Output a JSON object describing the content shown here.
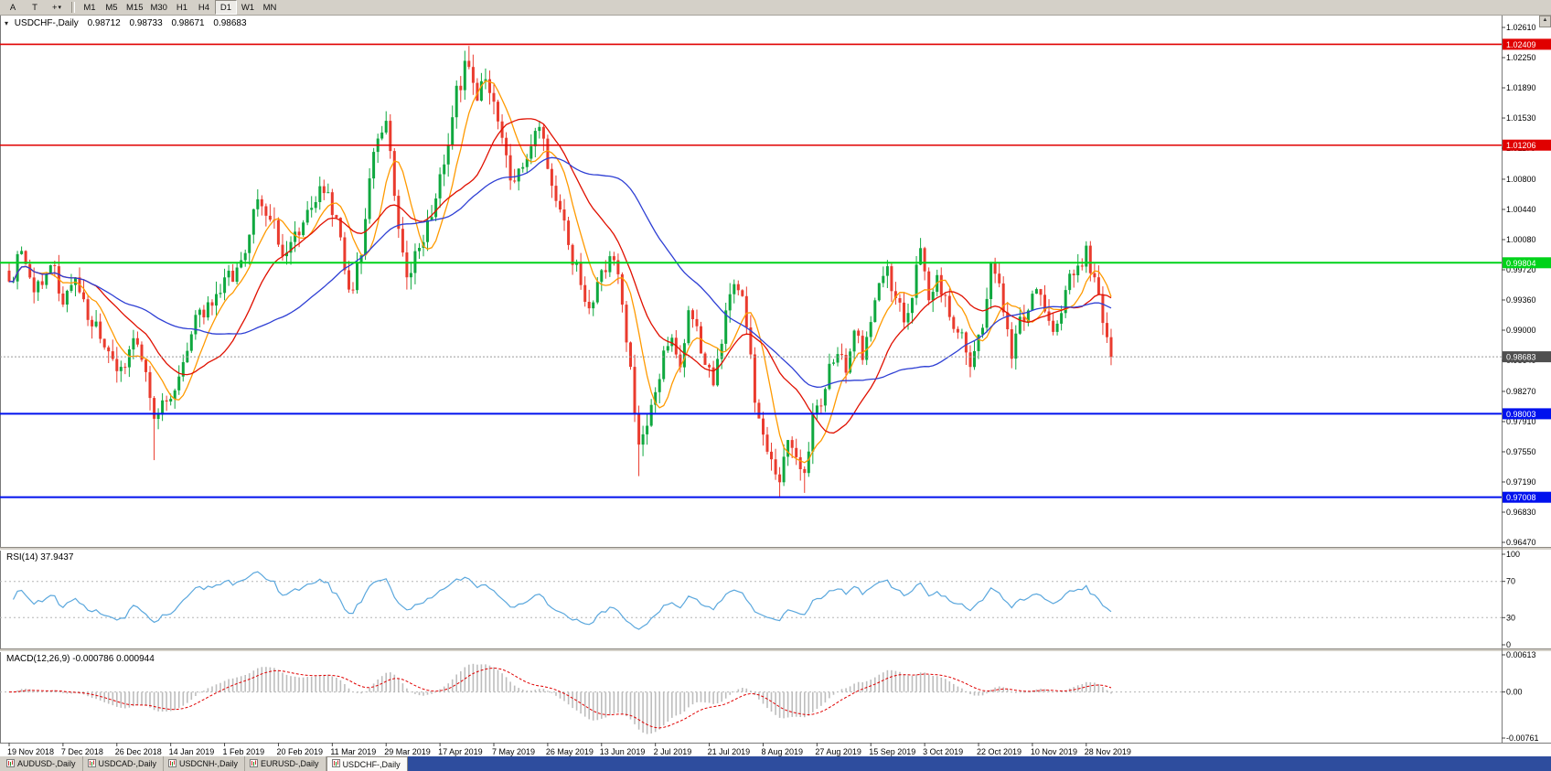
{
  "icons": {
    "collapse": "▾",
    "dropdown_caret": "▾",
    "scroll_up": "▲",
    "crosshair": "+"
  },
  "window": {
    "toolbar": {
      "button_a": "A",
      "button_t": "T",
      "timeframes": [
        "M1",
        "M5",
        "M15",
        "M30",
        "H1",
        "H4",
        "D1",
        "W1",
        "MN"
      ],
      "active_timeframe": "D1"
    },
    "bottom_tabs": {
      "tabs": [
        "AUDUSD-,Daily",
        "USDCAD-,Daily",
        "USDCNH-,Daily",
        "EURUSD-,Daily",
        "USDCHF-,Daily"
      ],
      "active": "USDCHF-,Daily",
      "fill_color": "#2e4d9e"
    }
  },
  "chart_data": {
    "type": "candlestick",
    "symbol": "USDCHF-",
    "timeframe": "Daily",
    "title": "USDCHF-,Daily",
    "quote": {
      "open": "0.98712",
      "high": "0.98733",
      "low": "0.98671",
      "close": "0.98683"
    },
    "bid": 0.98683,
    "bar_count": 267,
    "bars_per_label": 13,
    "price_axis": {
      "labels": [
        "1.02610",
        "1.02250",
        "1.01890",
        "1.01530",
        "1.01170",
        "1.00800",
        "1.00440",
        "1.00080",
        "0.99720",
        "0.99360",
        "0.99000",
        "0.98640",
        "0.98270",
        "0.97910",
        "0.97550",
        "0.97190",
        "0.96830",
        "0.96470"
      ],
      "values": [
        1.0261,
        1.0225,
        1.0189,
        1.0153,
        1.0117,
        1.008,
        1.0044,
        1.0008,
        0.9972,
        0.9936,
        0.99,
        0.9864,
        0.9827,
        0.9791,
        0.9755,
        0.9719,
        0.9683,
        0.9647
      ]
    },
    "date_axis_labels": [
      "19 Nov 2018",
      "7 Dec 2018",
      "26 Dec 2018",
      "14 Jan 2019",
      "1 Feb 2019",
      "20 Feb 2019",
      "11 Mar 2019",
      "29 Mar 2019",
      "17 Apr 2019",
      "7 May 2019",
      "26 May 2019",
      "13 Jun 2019",
      "2 Jul 2019",
      "21 Jul 2019",
      "8 Aug 2019",
      "27 Aug 2019",
      "15 Sep 2019",
      "3 Oct 2019",
      "22 Oct 2019",
      "10 Nov 2019",
      "28 Nov 2019"
    ],
    "price_path_anchors": [
      [
        0,
        0.9958
      ],
      [
        3,
        0.9992
      ],
      [
        6,
        0.9948
      ],
      [
        10,
        0.9978
      ],
      [
        13,
        0.9938
      ],
      [
        16,
        0.9958
      ],
      [
        20,
        0.9908
      ],
      [
        24,
        0.9868
      ],
      [
        27,
        0.9852
      ],
      [
        30,
        0.9888
      ],
      [
        33,
        0.9845
      ],
      [
        35,
        0.9792
      ],
      [
        38,
        0.9815
      ],
      [
        42,
        0.9858
      ],
      [
        46,
        0.9918
      ],
      [
        50,
        0.9938
      ],
      [
        53,
        0.9962
      ],
      [
        57,
        0.9992
      ],
      [
        60,
        1.0052
      ],
      [
        63,
        1.0032
      ],
      [
        66,
        0.9992
      ],
      [
        69,
        1.0012
      ],
      [
        72,
        1.0042
      ],
      [
        76,
        1.0072
      ],
      [
        79,
        1.0032
      ],
      [
        82,
        0.9942
      ],
      [
        85,
        0.9992
      ],
      [
        88,
        1.0122
      ],
      [
        91,
        1.0142
      ],
      [
        94,
        1.0022
      ],
      [
        96,
        0.9962
      ],
      [
        99,
        1.0002
      ],
      [
        102,
        1.0042
      ],
      [
        105,
        1.0102
      ],
      [
        108,
        1.0182
      ],
      [
        111,
        1.0222
      ],
      [
        113,
        1.0182
      ],
      [
        115,
        1.0198
      ],
      [
        118,
        1.0152
      ],
      [
        121,
        1.0082
      ],
      [
        124,
        1.0102
      ],
      [
        128,
        1.0138
      ],
      [
        131,
        1.0078
      ],
      [
        134,
        1.0022
      ],
      [
        137,
        0.9972
      ],
      [
        140,
        0.9932
      ],
      [
        143,
        0.9972
      ],
      [
        146,
        0.9988
      ],
      [
        148,
        0.9932
      ],
      [
        150,
        0.9852
      ],
      [
        152,
        0.9768
      ],
      [
        154,
        0.9788
      ],
      [
        156,
        0.9818
      ],
      [
        158,
        0.9872
      ],
      [
        160,
        0.9892
      ],
      [
        162,
        0.9862
      ],
      [
        164,
        0.9922
      ],
      [
        166,
        0.9898
      ],
      [
        168,
        0.9862
      ],
      [
        170,
        0.9832
      ],
      [
        172,
        0.9892
      ],
      [
        174,
        0.9938
      ],
      [
        176,
        0.9952
      ],
      [
        178,
        0.9912
      ],
      [
        180,
        0.9822
      ],
      [
        182,
        0.9768
      ],
      [
        184,
        0.974
      ],
      [
        186,
        0.9718
      ],
      [
        188,
        0.9772
      ],
      [
        190,
        0.9748
      ],
      [
        192,
        0.9728
      ],
      [
        194,
        0.9792
      ],
      [
        196,
        0.9812
      ],
      [
        198,
        0.9852
      ],
      [
        200,
        0.9878
      ],
      [
        202,
        0.9858
      ],
      [
        204,
        0.9898
      ],
      [
        206,
        0.9872
      ],
      [
        208,
        0.9918
      ],
      [
        210,
        0.9952
      ],
      [
        212,
        0.9972
      ],
      [
        214,
        0.9938
      ],
      [
        216,
        0.9908
      ],
      [
        218,
        0.9942
      ],
      [
        220,
        0.9998
      ],
      [
        222,
        0.9932
      ],
      [
        224,
        0.9958
      ],
      [
        226,
        0.9932
      ],
      [
        229,
        0.9898
      ],
      [
        232,
        0.9862
      ],
      [
        235,
        0.9902
      ],
      [
        237,
        0.9982
      ],
      [
        239,
        0.9952
      ],
      [
        242,
        0.9872
      ],
      [
        244,
        0.9908
      ],
      [
        246,
        0.9932
      ],
      [
        248,
        0.9958
      ],
      [
        250,
        0.9918
      ],
      [
        252,
        0.9888
      ],
      [
        254,
        0.9928
      ],
      [
        256,
        0.9958
      ],
      [
        258,
        0.9978
      ],
      [
        260,
        0.9992
      ],
      [
        262,
        0.9962
      ],
      [
        264,
        0.9912
      ],
      [
        266,
        0.98683
      ]
    ],
    "wick_overrides": {
      "35": {
        "low": 0.9745
      },
      "111": {
        "high": 1.0239
      },
      "152": {
        "low": 0.9726
      },
      "186": {
        "low": 0.97
      },
      "192": {
        "low": 0.9706
      },
      "260": {
        "high": 1.0006
      }
    },
    "moving_averages": [
      {
        "name": "ma-fast-line",
        "period": 8,
        "color": "#ff9a00"
      },
      {
        "name": "ma-mid-line",
        "period": 20,
        "color": "#e01000"
      },
      {
        "name": "ma-slow-line",
        "period": 45,
        "color": "#2e3fd4"
      }
    ],
    "horizontal_lines": [
      {
        "price": 1.02409,
        "label": "1.02409",
        "color": "#e00000",
        "width": 1.6
      },
      {
        "price": 1.01206,
        "label": "1.01206",
        "color": "#e00000",
        "width": 1.6
      },
      {
        "price": 0.99804,
        "label": "0.99804",
        "color": "#00d21a",
        "width": 2
      },
      {
        "price": 0.98003,
        "label": "0.98003",
        "color": "#0011ee",
        "width": 2
      },
      {
        "price": 0.97008,
        "label": "0.97008",
        "color": "#0011ee",
        "width": 2
      }
    ],
    "indicators": [
      {
        "name": "RSI",
        "label": "RSI(14) 37.9437",
        "period": 14,
        "levels": [
          100,
          70,
          30,
          0
        ],
        "dotted_levels": [
          70,
          30
        ],
        "value": "37.9437"
      },
      {
        "name": "MACD",
        "label": "MACD(12,26,9) -0.000786 0.000944",
        "fast": 12,
        "slow": 26,
        "signal": 9,
        "axis_labels": [
          "0.00613",
          "0.00",
          "-0.00761"
        ],
        "axis_values": [
          0.00613,
          0.0,
          -0.00761
        ],
        "main_value": "-0.000786",
        "signal_value": "0.000944"
      }
    ],
    "colors": {
      "background": "#ffffff",
      "toolbar_bg": "#d4d0c8",
      "candle_up": "#0fa83f",
      "candle_down": "#ea3b2e",
      "bid_line": "#9a9a9a",
      "bid_badge": "#4f4f4f",
      "rsi_line": "#5aa7dd",
      "macd_histogram": "#bdbdbd",
      "macd_signal": "#e00000",
      "tabbar_fill": "#2e4d9e"
    }
  }
}
